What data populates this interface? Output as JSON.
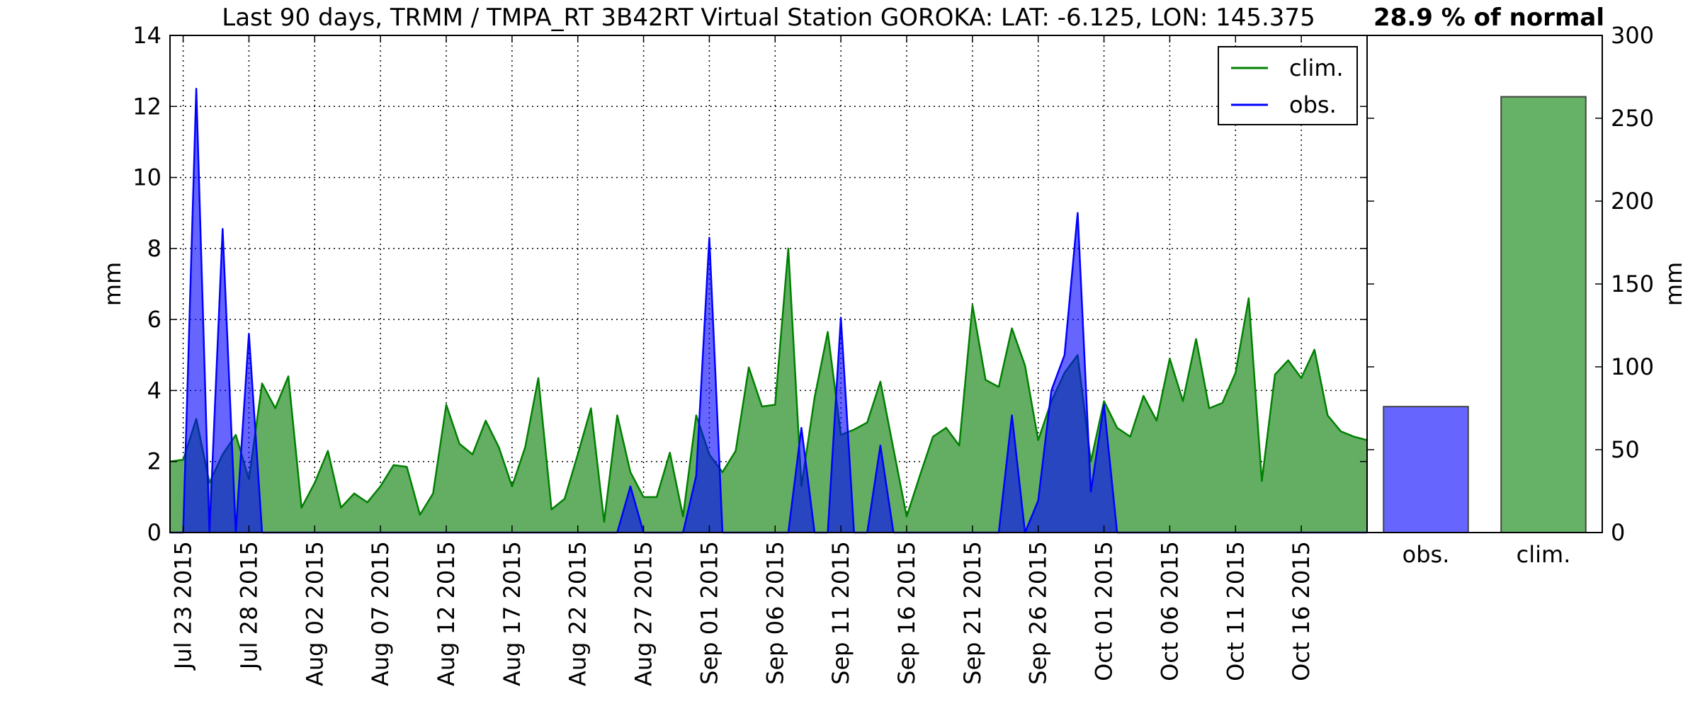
{
  "chart_data": [
    {
      "type": "area",
      "title": "Last 90 days, TRMM / TMPA_RT 3B42RT Virtual Station GOROKA: LAT: -6.125, LON: 145.375",
      "xlabel": "",
      "ylabel": "mm",
      "x_start": "2015-07-22",
      "x_end": "2015-10-21",
      "x_tick_labels": [
        "Jul 23 2015",
        "Jul 28 2015",
        "Aug 02 2015",
        "Aug 07 2015",
        "Aug 12 2015",
        "Aug 17 2015",
        "Aug 22 2015",
        "Aug 27 2015",
        "Sep 01 2015",
        "Sep 06 2015",
        "Sep 11 2015",
        "Sep 16 2015",
        "Sep 21 2015",
        "Sep 26 2015",
        "Oct 01 2015",
        "Oct 06 2015",
        "Oct 11 2015",
        "Oct 16 2015"
      ],
      "x_tick_dates": [
        "2015-07-23",
        "2015-07-28",
        "2015-08-02",
        "2015-08-07",
        "2015-08-12",
        "2015-08-17",
        "2015-08-22",
        "2015-08-27",
        "2015-09-01",
        "2015-09-06",
        "2015-09-11",
        "2015-09-16",
        "2015-09-21",
        "2015-09-26",
        "2015-10-01",
        "2015-10-06",
        "2015-10-11",
        "2015-10-16"
      ],
      "ylim": [
        0,
        14
      ],
      "y_ticks": [
        0,
        2,
        4,
        6,
        8,
        10,
        12,
        14
      ],
      "grid": true,
      "legend": "top-right",
      "series": [
        {
          "name": "clim.",
          "color": "#008000",
          "fill": "#63ae63",
          "points": [
            [
              "2015-07-22",
              2.0
            ],
            [
              "2015-07-23",
              2.05
            ],
            [
              "2015-07-24",
              3.2
            ],
            [
              "2015-07-25",
              1.4
            ],
            [
              "2015-07-26",
              2.2
            ],
            [
              "2015-07-27",
              2.75
            ],
            [
              "2015-07-28",
              1.5
            ],
            [
              "2015-07-29",
              4.2
            ],
            [
              "2015-07-30",
              3.5
            ],
            [
              "2015-07-31",
              4.4
            ],
            [
              "2015-08-01",
              0.7
            ],
            [
              "2015-08-02",
              1.4
            ],
            [
              "2015-08-03",
              2.3
            ],
            [
              "2015-08-04",
              0.7
            ],
            [
              "2015-08-05",
              1.1
            ],
            [
              "2015-08-06",
              0.85
            ],
            [
              "2015-08-07",
              1.3
            ],
            [
              "2015-08-08",
              1.9
            ],
            [
              "2015-08-09",
              1.85
            ],
            [
              "2015-08-10",
              0.5
            ],
            [
              "2015-08-11",
              1.1
            ],
            [
              "2015-08-12",
              3.6
            ],
            [
              "2015-08-13",
              2.5
            ],
            [
              "2015-08-14",
              2.2
            ],
            [
              "2015-08-15",
              3.15
            ],
            [
              "2015-08-16",
              2.4
            ],
            [
              "2015-08-17",
              1.3
            ],
            [
              "2015-08-18",
              2.4
            ],
            [
              "2015-08-19",
              4.35
            ],
            [
              "2015-08-20",
              0.65
            ],
            [
              "2015-08-21",
              0.95
            ],
            [
              "2015-08-22",
              2.2
            ],
            [
              "2015-08-23",
              3.5
            ],
            [
              "2015-08-24",
              0.3
            ],
            [
              "2015-08-25",
              3.3
            ],
            [
              "2015-08-26",
              1.7
            ],
            [
              "2015-08-27",
              1.0
            ],
            [
              "2015-08-28",
              1.0
            ],
            [
              "2015-08-29",
              2.25
            ],
            [
              "2015-08-30",
              0.45
            ],
            [
              "2015-08-31",
              3.3
            ],
            [
              "2015-09-01",
              2.2
            ],
            [
              "2015-09-02",
              1.7
            ],
            [
              "2015-09-03",
              2.3
            ],
            [
              "2015-09-04",
              4.65
            ],
            [
              "2015-09-05",
              3.55
            ],
            [
              "2015-09-06",
              3.6
            ],
            [
              "2015-09-07",
              8.0
            ],
            [
              "2015-09-08",
              1.3
            ],
            [
              "2015-09-09",
              3.8
            ],
            [
              "2015-09-10",
              5.65
            ],
            [
              "2015-09-11",
              2.75
            ],
            [
              "2015-09-12",
              2.9
            ],
            [
              "2015-09-13",
              3.1
            ],
            [
              "2015-09-14",
              4.25
            ],
            [
              "2015-09-15",
              2.35
            ],
            [
              "2015-09-16",
              0.45
            ],
            [
              "2015-09-17",
              1.6
            ],
            [
              "2015-09-18",
              2.7
            ],
            [
              "2015-09-19",
              2.95
            ],
            [
              "2015-09-20",
              2.45
            ],
            [
              "2015-09-21",
              6.4
            ],
            [
              "2015-09-22",
              4.3
            ],
            [
              "2015-09-23",
              4.1
            ],
            [
              "2015-09-24",
              5.75
            ],
            [
              "2015-09-25",
              4.7
            ],
            [
              "2015-09-26",
              2.6
            ],
            [
              "2015-09-27",
              3.7
            ],
            [
              "2015-09-28",
              4.5
            ],
            [
              "2015-09-29",
              5.0
            ],
            [
              "2015-09-30",
              2.0
            ],
            [
              "2015-10-01",
              3.7
            ],
            [
              "2015-10-02",
              2.95
            ],
            [
              "2015-10-03",
              2.7
            ],
            [
              "2015-10-04",
              3.85
            ],
            [
              "2015-10-05",
              3.15
            ],
            [
              "2015-10-06",
              4.9
            ],
            [
              "2015-10-07",
              3.7
            ],
            [
              "2015-10-08",
              5.45
            ],
            [
              "2015-10-09",
              3.5
            ],
            [
              "2015-10-10",
              3.65
            ],
            [
              "2015-10-11",
              4.5
            ],
            [
              "2015-10-12",
              6.6
            ],
            [
              "2015-10-13",
              1.45
            ],
            [
              "2015-10-14",
              4.45
            ],
            [
              "2015-10-15",
              4.85
            ],
            [
              "2015-10-16",
              4.35
            ],
            [
              "2015-10-17",
              5.15
            ],
            [
              "2015-10-18",
              3.3
            ],
            [
              "2015-10-19",
              2.85
            ],
            [
              "2015-10-20",
              2.7
            ],
            [
              "2015-10-21",
              2.6
            ]
          ]
        },
        {
          "name": "obs.",
          "color": "#0000ff",
          "fill": "#0000ff",
          "fill_opacity": 0.6,
          "points": [
            [
              "2015-07-22",
              0.0
            ],
            [
              "2015-07-23",
              0.0
            ],
            [
              "2015-07-24",
              12.5
            ],
            [
              "2015-07-25",
              0.0
            ],
            [
              "2015-07-26",
              8.55
            ],
            [
              "2015-07-27",
              0.0
            ],
            [
              "2015-07-28",
              5.6
            ],
            [
              "2015-07-29",
              0.0
            ],
            [
              "2015-07-30",
              0.0
            ],
            [
              "2015-07-31",
              0.0
            ],
            [
              "2015-08-01",
              0.0
            ],
            [
              "2015-08-02",
              0.0
            ],
            [
              "2015-08-03",
              0.0
            ],
            [
              "2015-08-04",
              0.0
            ],
            [
              "2015-08-05",
              0.0
            ],
            [
              "2015-08-06",
              0.0
            ],
            [
              "2015-08-07",
              0.0
            ],
            [
              "2015-08-08",
              0.0
            ],
            [
              "2015-08-09",
              0.0
            ],
            [
              "2015-08-10",
              0.0
            ],
            [
              "2015-08-11",
              0.0
            ],
            [
              "2015-08-12",
              0.0
            ],
            [
              "2015-08-13",
              0.0
            ],
            [
              "2015-08-14",
              0.0
            ],
            [
              "2015-08-15",
              0.0
            ],
            [
              "2015-08-16",
              0.0
            ],
            [
              "2015-08-17",
              0.0
            ],
            [
              "2015-08-18",
              0.0
            ],
            [
              "2015-08-19",
              0.0
            ],
            [
              "2015-08-20",
              0.0
            ],
            [
              "2015-08-21",
              0.0
            ],
            [
              "2015-08-22",
              0.0
            ],
            [
              "2015-08-23",
              0.0
            ],
            [
              "2015-08-24",
              0.0
            ],
            [
              "2015-08-25",
              0.0
            ],
            [
              "2015-08-26",
              1.3
            ],
            [
              "2015-08-27",
              0.0
            ],
            [
              "2015-08-28",
              0.0
            ],
            [
              "2015-08-29",
              0.0
            ],
            [
              "2015-08-30",
              0.0
            ],
            [
              "2015-08-31",
              1.6
            ],
            [
              "2015-09-01",
              8.3
            ],
            [
              "2015-09-02",
              0.0
            ],
            [
              "2015-09-03",
              0.0
            ],
            [
              "2015-09-04",
              0.0
            ],
            [
              "2015-09-05",
              0.0
            ],
            [
              "2015-09-06",
              0.0
            ],
            [
              "2015-09-07",
              0.0
            ],
            [
              "2015-09-08",
              2.95
            ],
            [
              "2015-09-09",
              0.0
            ],
            [
              "2015-09-10",
              0.0
            ],
            [
              "2015-09-11",
              6.05
            ],
            [
              "2015-09-12",
              0.0
            ],
            [
              "2015-09-13",
              0.0
            ],
            [
              "2015-09-14",
              2.45
            ],
            [
              "2015-09-15",
              0.0
            ],
            [
              "2015-09-16",
              0.0
            ],
            [
              "2015-09-17",
              0.0
            ],
            [
              "2015-09-18",
              0.0
            ],
            [
              "2015-09-19",
              0.0
            ],
            [
              "2015-09-20",
              0.0
            ],
            [
              "2015-09-21",
              0.0
            ],
            [
              "2015-09-22",
              0.0
            ],
            [
              "2015-09-23",
              0.0
            ],
            [
              "2015-09-24",
              3.3
            ],
            [
              "2015-09-25",
              0.0
            ],
            [
              "2015-09-26",
              0.9
            ],
            [
              "2015-09-27",
              4.0
            ],
            [
              "2015-09-28",
              5.0
            ],
            [
              "2015-09-29",
              9.0
            ],
            [
              "2015-09-30",
              1.15
            ],
            [
              "2015-10-01",
              3.6
            ],
            [
              "2015-10-02",
              0.0
            ],
            [
              "2015-10-03",
              0.0
            ],
            [
              "2015-10-04",
              0.0
            ],
            [
              "2015-10-05",
              0.0
            ],
            [
              "2015-10-06",
              0.0
            ],
            [
              "2015-10-07",
              0.0
            ],
            [
              "2015-10-08",
              0.0
            ],
            [
              "2015-10-09",
              0.0
            ],
            [
              "2015-10-10",
              0.0
            ],
            [
              "2015-10-11",
              0.0
            ],
            [
              "2015-10-12",
              0.0
            ],
            [
              "2015-10-13",
              0.0
            ],
            [
              "2015-10-14",
              0.0
            ],
            [
              "2015-10-15",
              0.0
            ],
            [
              "2015-10-16",
              0.0
            ],
            [
              "2015-10-17",
              0.0
            ],
            [
              "2015-10-18",
              0.0
            ],
            [
              "2015-10-19",
              0.0
            ],
            [
              "2015-10-20",
              0.0
            ],
            [
              "2015-10-21",
              0.0
            ]
          ]
        }
      ]
    },
    {
      "type": "bar",
      "title": "28.9 % of normal",
      "categories": [
        "obs.",
        "clim."
      ],
      "values": [
        76,
        263
      ],
      "colors": [
        "#6666ff",
        "#66b266"
      ],
      "xlabel": "",
      "ylabel": "mm",
      "ylim": [
        0,
        300
      ],
      "y_ticks": [
        0,
        50,
        100,
        150,
        200,
        250,
        300
      ],
      "y_axis_side": "right",
      "grid": false
    }
  ]
}
